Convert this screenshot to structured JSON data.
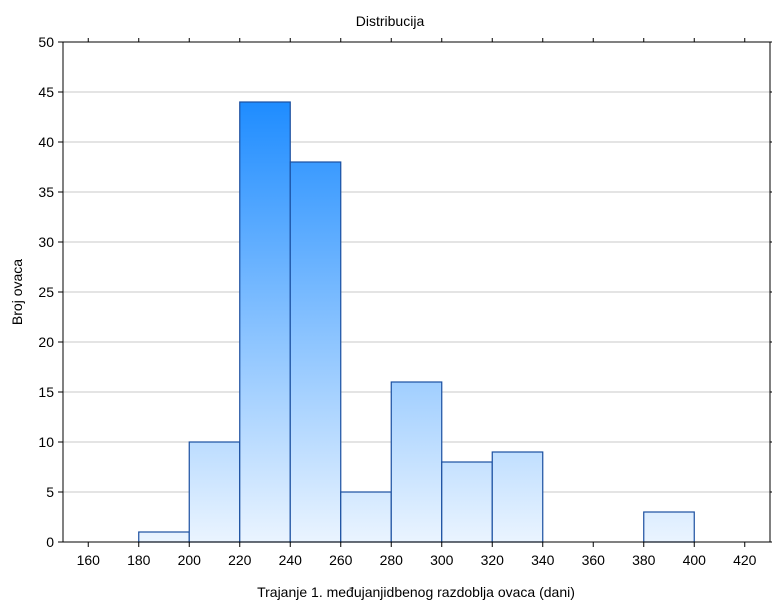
{
  "chart_data": {
    "type": "bar",
    "title": "Distribucija",
    "xlabel": "Trajanje 1. međujanjidbenog razdoblja ovaca (dani)",
    "ylabel": "Broj ovaca",
    "xlim": [
      150,
      430
    ],
    "ylim": [
      0,
      50
    ],
    "x_ticks": [
      160,
      180,
      200,
      220,
      240,
      260,
      280,
      300,
      320,
      340,
      360,
      380,
      400,
      420
    ],
    "y_ticks": [
      0,
      5,
      10,
      15,
      20,
      25,
      30,
      35,
      40,
      45,
      50
    ],
    "grid": "horizontal",
    "bins": [
      {
        "from": 180,
        "to": 200,
        "value": 1
      },
      {
        "from": 200,
        "to": 220,
        "value": 10
      },
      {
        "from": 220,
        "to": 240,
        "value": 44
      },
      {
        "from": 240,
        "to": 260,
        "value": 38
      },
      {
        "from": 260,
        "to": 280,
        "value": 5
      },
      {
        "from": 280,
        "to": 300,
        "value": 16
      },
      {
        "from": 300,
        "to": 320,
        "value": 8
      },
      {
        "from": 320,
        "to": 340,
        "value": 9
      },
      {
        "from": 380,
        "to": 400,
        "value": 3
      }
    ],
    "colors": {
      "bar_top": "#1e8cff",
      "bar_bottom": "#eaf4ff",
      "bar_stroke": "#1a4fa0",
      "grid": "#c8c8c8",
      "axis": "#000000"
    }
  }
}
